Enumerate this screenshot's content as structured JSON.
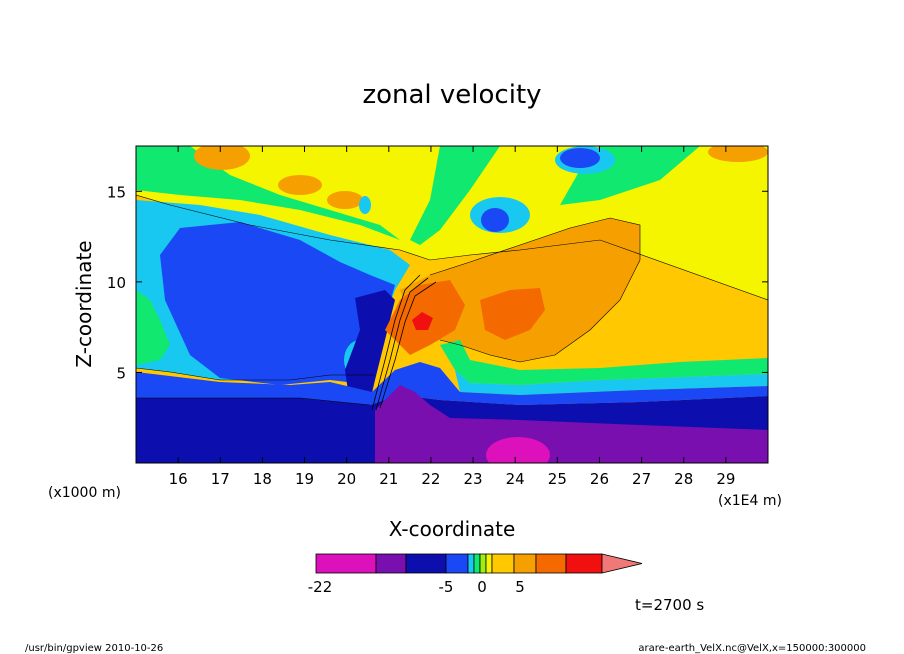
{
  "chart_data": {
    "type": "heatmap",
    "title": "zonal velocity",
    "xlabel": "X-coordinate",
    "ylabel": "Z-coordinate",
    "x_unit_left": "(x1000 m)",
    "x_unit_right": "(x1E4 m)",
    "xlim": [
      15.0,
      30.0
    ],
    "ylim": [
      0.0,
      17.5
    ],
    "x_ticks": [
      16,
      17,
      18,
      19,
      20,
      21,
      22,
      23,
      24,
      25,
      26,
      27,
      28,
      29
    ],
    "y_ticks": [
      5,
      10,
      15
    ],
    "colorbar": {
      "colors": [
        "#dd11bb",
        "#7a0fb0",
        "#0c0fae",
        "#1a48f5",
        "#18c8f0",
        "#10e870",
        "#9af010",
        "#f5f500",
        "#ffc800",
        "#f5a000",
        "#f56a00",
        "#f01010",
        "#f07878"
      ],
      "tick_labels": [
        "-22",
        "-5",
        "0",
        "5"
      ],
      "tick_values": [
        -22,
        -5,
        0,
        5
      ]
    },
    "time_label": "t=2700 s"
  },
  "footer": {
    "left": "/usr/bin/gpview  2010-10-26",
    "right": "arare-earth_VelX.nc@VelX,x=150000:300000"
  }
}
